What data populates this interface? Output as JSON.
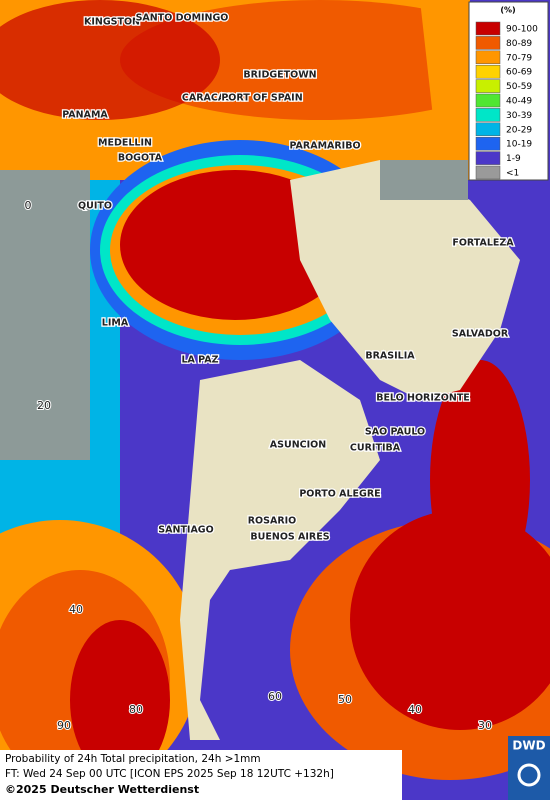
{
  "legend": {
    "unit": "(%)",
    "items": [
      {
        "label": "90-100",
        "color": "#c80000"
      },
      {
        "label": "80-89",
        "color": "#f05a00"
      },
      {
        "label": "70-79",
        "color": "#ff9600"
      },
      {
        "label": "60-69",
        "color": "#ffd200"
      },
      {
        "label": "50-59",
        "color": "#c8f000"
      },
      {
        "label": "40-49",
        "color": "#50e632"
      },
      {
        "label": "30-39",
        "color": "#00e6c8"
      },
      {
        "label": "20-29",
        "color": "#00b4e6"
      },
      {
        "label": "10-19",
        "color": "#1e64f0"
      },
      {
        "label": "1-9",
        "color": "#4b37c8"
      },
      {
        "label": "<1",
        "color": "#9a9a9a"
      }
    ]
  },
  "cities": [
    "KINGSTON",
    "SANTO DOMINGO",
    "BRIDGETOWN",
    "CARACAS",
    "PORT OF SPAIN",
    "PANAMA",
    "MEDELLIN",
    "BOGOTA",
    "PARAMARIBO",
    "QUITO",
    "FORTALEZA",
    "LIMA",
    "SALVADOR",
    "BRASILIA",
    "LA PAZ",
    "BELO HORIZONTE",
    "SAO PAULO",
    "ASUNCION",
    "CURITIBA",
    "PORTO ALEGRE",
    "ROSARIO",
    "SANTIAGO",
    "BUENOS AIRES"
  ],
  "grid_labels": [
    "0",
    "20",
    "40",
    "90",
    "80",
    "60",
    "50",
    "40",
    "30"
  ],
  "footer": {
    "line1": "Probability of 24h Total precipitation, 24h >1mm",
    "line2": "FT: Wed 24 Sep 00 UTC [ICON EPS 2025 Sep 18 12UTC +132h]",
    "line3": "©2025 Deutscher Wetterdienst"
  },
  "logo": "DWD"
}
